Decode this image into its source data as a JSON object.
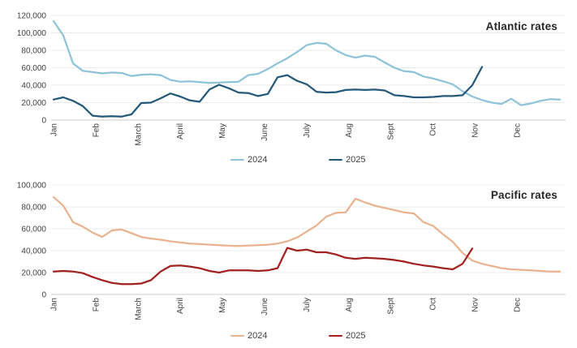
{
  "colors": {
    "background": "#ffffff",
    "grid": "#ebebeb",
    "axis_line": "#cfcfcf",
    "tick_label": "#404040",
    "title": "#262626"
  },
  "chart_data": [
    {
      "type": "line",
      "title": "Atlantic rates",
      "categories": [
        "Jan",
        "Feb",
        "March",
        "April",
        "May",
        "June",
        "July",
        "Aug",
        "Sept",
        "Oct",
        "Nov",
        "Dec"
      ],
      "x_note": "weekly data points from January through December",
      "ylim": [
        0,
        120000
      ],
      "y_tick_interval": 20000,
      "y_tick_labels": [
        "0",
        "20,000",
        "40,000",
        "60,000",
        "80,000",
        "100,000",
        "120,000"
      ],
      "grid": "horizontal",
      "legend_position": "bottom",
      "series": [
        {
          "name": "2024",
          "color": "#8fc3d9",
          "values": [
            113500,
            97000,
            65000,
            56500,
            55000,
            53500,
            54500,
            54000,
            50500,
            52000,
            52500,
            51500,
            46000,
            44000,
            44500,
            43500,
            42500,
            43000,
            43500,
            44000,
            51500,
            53000,
            58500,
            65000,
            71000,
            78000,
            86000,
            88500,
            87500,
            80000,
            74500,
            71500,
            74000,
            72500,
            66000,
            60000,
            56000,
            55000,
            50000,
            47500,
            44500,
            41000,
            33000,
            27000,
            23000,
            20000,
            18500,
            24500,
            17000,
            19000,
            22000,
            24000,
            23500
          ]
        },
        {
          "name": "2025",
          "color": "#24597a",
          "values": [
            23500,
            26000,
            22000,
            16000,
            5000,
            4000,
            4500,
            4000,
            6500,
            19500,
            20000,
            25000,
            30500,
            27000,
            22500,
            21000,
            35000,
            40500,
            36500,
            31500,
            31000,
            27500,
            30000,
            49000,
            51500,
            45000,
            41000,
            32500,
            31500,
            32000,
            34500,
            35000,
            34500,
            35000,
            34000,
            28500,
            27500,
            26000,
            26000,
            26500,
            27500,
            27500,
            28500,
            40000,
            61000
          ]
        }
      ]
    },
    {
      "type": "line",
      "title": "Pacific rates",
      "categories": [
        "Jan",
        "Feb",
        "March",
        "April",
        "May",
        "June",
        "July",
        "Aug",
        "Sept",
        "Oct",
        "Nov",
        "Dec"
      ],
      "x_note": "weekly data points from January through December",
      "ylim": [
        0,
        100000
      ],
      "y_tick_interval": 20000,
      "y_tick_labels": [
        "0",
        "20,000",
        "40,000",
        "60,000",
        "80,000",
        "100,000"
      ],
      "grid": "horizontal",
      "legend_position": "bottom",
      "series": [
        {
          "name": "2024",
          "color": "#e9b38f",
          "values": [
            89000,
            81000,
            66000,
            62000,
            56500,
            52500,
            58500,
            59300,
            56000,
            52500,
            51000,
            50000,
            48500,
            47500,
            46500,
            46000,
            45500,
            45000,
            44500,
            44300,
            44600,
            45000,
            45500,
            46500,
            48500,
            52000,
            57500,
            63000,
            71000,
            74500,
            75000,
            87500,
            84000,
            81000,
            79000,
            77000,
            75000,
            74000,
            66000,
            62500,
            55000,
            48000,
            38000,
            31000,
            28000,
            26000,
            24000,
            23000,
            22500,
            22000,
            21500,
            21000,
            21000
          ]
        },
        {
          "name": "2025",
          "color": "#a12121",
          "values": [
            21000,
            21500,
            21000,
            19500,
            16000,
            13000,
            10500,
            9500,
            9500,
            10000,
            13000,
            21000,
            26000,
            26500,
            25500,
            24000,
            21500,
            20000,
            22000,
            22000,
            22000,
            21500,
            22000,
            24000,
            42500,
            40000,
            41000,
            38500,
            38500,
            36500,
            33500,
            32500,
            33500,
            33000,
            32500,
            31500,
            30000,
            28000,
            26500,
            25500,
            24000,
            23000,
            28000,
            42000
          ]
        }
      ]
    }
  ]
}
